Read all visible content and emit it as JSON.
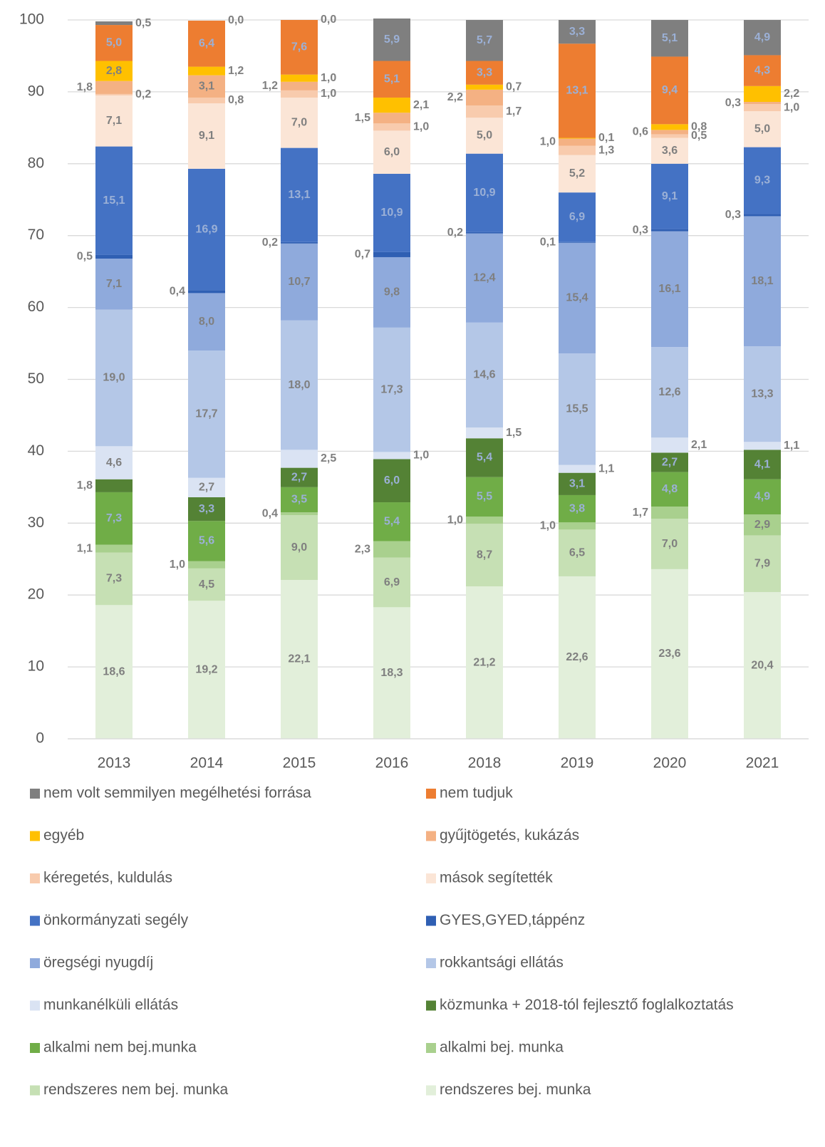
{
  "chart_data": {
    "type": "stacked_bar",
    "categories": [
      "2013",
      "2014",
      "2015",
      "2016",
      "2018",
      "2019",
      "2020",
      "2021"
    ],
    "ylim": [
      0,
      100
    ],
    "yticks": [
      0,
      10,
      20,
      30,
      40,
      50,
      60,
      70,
      80,
      90,
      100
    ],
    "grid": true,
    "series": [
      {
        "name": "rendszeres bej. munka",
        "color": "#e2efda",
        "values": [
          18.6,
          19.2,
          22.1,
          18.3,
          21.2,
          22.6,
          23.6,
          20.4
        ],
        "value_labels": [
          "18,6",
          "19,2",
          "22,1",
          "18,3",
          "21,2",
          "22,6",
          "23,6",
          "20,4"
        ]
      },
      {
        "name": "rendszeres nem bej. munka",
        "color": "#c6e0b4",
        "values": [
          7.3,
          4.5,
          9.0,
          6.9,
          8.7,
          6.5,
          7.0,
          7.9
        ],
        "value_labels": [
          "7,3",
          "4,5",
          "9,0",
          "6,9",
          "8,7",
          "6,5",
          "7,0",
          "7,9"
        ]
      },
      {
        "name": "alkalmi bej. munka",
        "color": "#a9d08e",
        "values": [
          1.1,
          1.0,
          0.4,
          2.3,
          1.0,
          1.0,
          1.7,
          2.9
        ],
        "value_labels": [
          "1,1",
          "1,0",
          "0,4",
          "2,3",
          "1,0",
          "1,0",
          "1,7",
          "2,9"
        ]
      },
      {
        "name": "alkalmi nem bej.munka",
        "color": "#70ad47",
        "values": [
          7.3,
          5.6,
          3.5,
          5.4,
          5.5,
          3.8,
          4.8,
          4.9
        ],
        "value_labels": [
          "7,3",
          "5,6",
          "3,5",
          "5,4",
          "5,5",
          "3,8",
          "4,8",
          "4,9"
        ]
      },
      {
        "name": "közmunka + 2018-tól fejlesztő foglalkoztatás",
        "color": "#548235",
        "values": [
          1.8,
          3.3,
          2.7,
          6.0,
          5.4,
          3.1,
          2.7,
          4.1
        ],
        "value_labels": [
          "1,8",
          "3,3",
          "2,7",
          "6,0",
          "5,4",
          "3,1",
          "2,7",
          "4,1"
        ]
      },
      {
        "name": "munkanélküli ellátás",
        "color": "#dae3f3",
        "values": [
          4.6,
          2.7,
          2.5,
          1.0,
          1.5,
          1.1,
          2.1,
          1.1
        ],
        "value_labels": [
          "4,6",
          "2,7",
          "2,5",
          "1,0",
          "1,5",
          "1,1",
          "2,1",
          "1,1"
        ]
      },
      {
        "name": "rokkantsági ellátás",
        "color": "#b4c7e7",
        "values": [
          19.0,
          17.7,
          18.0,
          17.3,
          14.6,
          15.5,
          12.6,
          13.3
        ],
        "value_labels": [
          "19,0",
          "17,7",
          "18,0",
          "17,3",
          "14,6",
          "15,5",
          "12,6",
          "13,3"
        ]
      },
      {
        "name": "öregségi nyugdíj",
        "color": "#8faadc",
        "values": [
          7.1,
          8.0,
          10.7,
          9.8,
          12.4,
          15.4,
          16.1,
          18.1
        ],
        "value_labels": [
          "7,1",
          "8,0",
          "10,7",
          "9,8",
          "12,4",
          "15,4",
          "16,1",
          "18,1"
        ]
      },
      {
        "name": "GYES,GYED,táppénz",
        "color": "#2f5fb3",
        "values": [
          0.5,
          0.4,
          0.2,
          0.7,
          0.2,
          0.1,
          0.3,
          0.3
        ],
        "value_labels": [
          "0,5",
          "0,4",
          "0,2",
          "0,7",
          "0,2",
          "0,1",
          "0,3",
          "0,3"
        ]
      },
      {
        "name": "önkormányzati segély",
        "color": "#4472c4",
        "values": [
          15.1,
          16.9,
          13.1,
          10.9,
          10.9,
          6.9,
          9.1,
          9.3
        ],
        "value_labels": [
          "15,1",
          "16,9",
          "13,1",
          "10,9",
          "10,9",
          "6,9",
          "9,1",
          "9,3"
        ]
      },
      {
        "name": "mások segítették",
        "color": "#fbe5d6",
        "values": [
          7.1,
          9.1,
          7.0,
          6.0,
          5.0,
          5.2,
          3.6,
          5.0
        ],
        "value_labels": [
          "7,1",
          "9,1",
          "7,0",
          "6,0",
          "5,0",
          "5,2",
          "3,6",
          "5,0"
        ]
      },
      {
        "name": "kéregetés, kuldulás",
        "color": "#f8cbad",
        "values": [
          0.2,
          0.8,
          1.0,
          1.0,
          1.7,
          1.3,
          0.5,
          1.0
        ],
        "value_labels": [
          "0,2",
          "0,8",
          "1,0",
          "1,0",
          "1,7",
          "1,3",
          "0,5",
          "1,0"
        ]
      },
      {
        "name": "gyűjtögetés, kukázás",
        "color": "#f4b183",
        "values": [
          1.8,
          3.1,
          1.2,
          1.5,
          2.2,
          1.0,
          0.6,
          0.3
        ],
        "value_labels": [
          "1,8",
          "3,1",
          "1,2",
          "1,5",
          "2,2",
          "1,0",
          "0,6",
          "0,3"
        ]
      },
      {
        "name": "egyéb",
        "color": "#ffc000",
        "values": [
          2.8,
          1.2,
          1.0,
          2.1,
          0.7,
          0.1,
          0.8,
          2.2
        ],
        "value_labels": [
          "2,8",
          "1,2",
          "1,0",
          "2,1",
          "0,7",
          "0,1",
          "0,8",
          "2,2"
        ]
      },
      {
        "name": "nem tudjuk",
        "color": "#ed7d31",
        "values": [
          5.0,
          6.4,
          7.6,
          5.1,
          3.3,
          13.1,
          9.4,
          4.3
        ],
        "value_labels": [
          "5,0",
          "6,4",
          "7,6",
          "5,1",
          "3,3",
          "13,1",
          "9,4",
          "4,3"
        ]
      },
      {
        "name": "nem volt semmilyen megélhetési forrása",
        "color": "#7f7f7f",
        "values": [
          0.5,
          0.0,
          0.0,
          5.9,
          5.7,
          3.3,
          5.1,
          4.9
        ],
        "value_labels": [
          "0,5",
          "0,0",
          "0,0",
          "5,9",
          "5,7",
          "3,3",
          "5,1",
          "4,9"
        ]
      }
    ]
  }
}
